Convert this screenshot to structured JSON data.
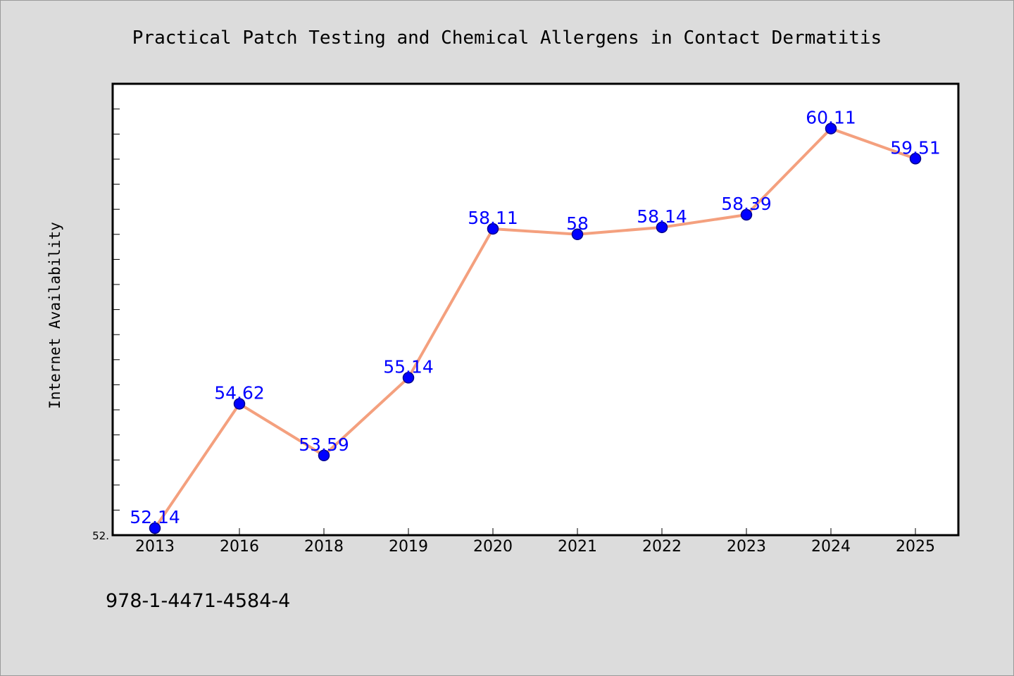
{
  "chart_data": {
    "type": "line",
    "title": "Practical Patch Testing and Chemical Allergens in Contact Dermatitis",
    "xlabel": "",
    "ylabel": "Internet Availability",
    "categories": [
      "2013",
      "2016",
      "2018",
      "2019",
      "2020",
      "2021",
      "2022",
      "2023",
      "2024",
      "2025"
    ],
    "series": [
      {
        "values": [
          52.14,
          54.62,
          53.59,
          55.14,
          58.11,
          58,
          58.14,
          58.39,
          60.11,
          59.51
        ],
        "labels": [
          "52.14",
          "54.62",
          "53.59",
          "55.14",
          "58.11",
          "58",
          "58.14",
          "58.39",
          "60.11",
          "59.51"
        ]
      }
    ],
    "ylim": [
      52,
      61
    ],
    "y_tick_labels": [
      "52."
    ],
    "grid": false,
    "colors": {
      "line": "#f4a07e",
      "marker": "#0000ff",
      "marker_edge": "#00008b",
      "data_label": "#0000ff",
      "plot_background": "#ffffff",
      "figure_background": "#dcdcdc"
    }
  },
  "footer": {
    "isbn": "978-1-4471-4584-4"
  }
}
